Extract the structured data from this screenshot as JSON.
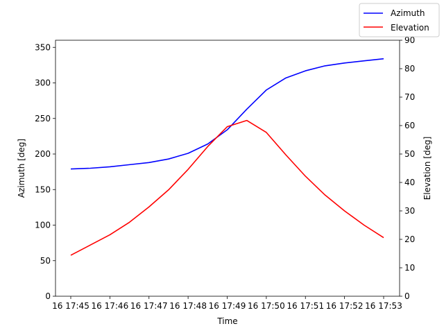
{
  "chart_data": {
    "type": "line",
    "xlabel": "Time",
    "ylabel_left": "Azimuth [deg]",
    "ylabel_right": "Elevation [deg]",
    "ylim_left": [
      0,
      360
    ],
    "ylim_right": [
      0,
      90
    ],
    "x_ticks": [
      "16 17:45",
      "16 17:46",
      "16 17:47",
      "16 17:48",
      "16 17:49",
      "16 17:50",
      "16 17:51",
      "16 17:52",
      "16 17:53"
    ],
    "y_ticks_left": [
      0,
      50,
      100,
      150,
      200,
      250,
      300,
      350
    ],
    "y_ticks_right": [
      0,
      10,
      20,
      30,
      40,
      50,
      60,
      70,
      80,
      90
    ],
    "x": [
      "17:45:00",
      "17:45:30",
      "17:46:00",
      "17:46:30",
      "17:47:00",
      "17:47:30",
      "17:48:00",
      "17:48:30",
      "17:49:00",
      "17:49:30",
      "17:50:00",
      "17:50:30",
      "17:51:00",
      "17:51:30",
      "17:52:00",
      "17:52:30",
      "17:53:00"
    ],
    "series": [
      {
        "name": "Azimuth",
        "axis": "left",
        "color": "#0000ff",
        "values": [
          179,
          180,
          182,
          185,
          188,
          193,
          201,
          214,
          234,
          263,
          290,
          307,
          317,
          324,
          328,
          331,
          334
        ]
      },
      {
        "name": "Elevation",
        "axis": "right",
        "color": "#ff0000",
        "values": [
          14.4,
          18,
          21.6,
          26,
          31.4,
          37.4,
          44.6,
          52.6,
          59.6,
          61.8,
          57.6,
          49.7,
          42.2,
          35.6,
          30,
          25,
          20.6
        ]
      }
    ],
    "grid": false,
    "legend": "top-right"
  }
}
